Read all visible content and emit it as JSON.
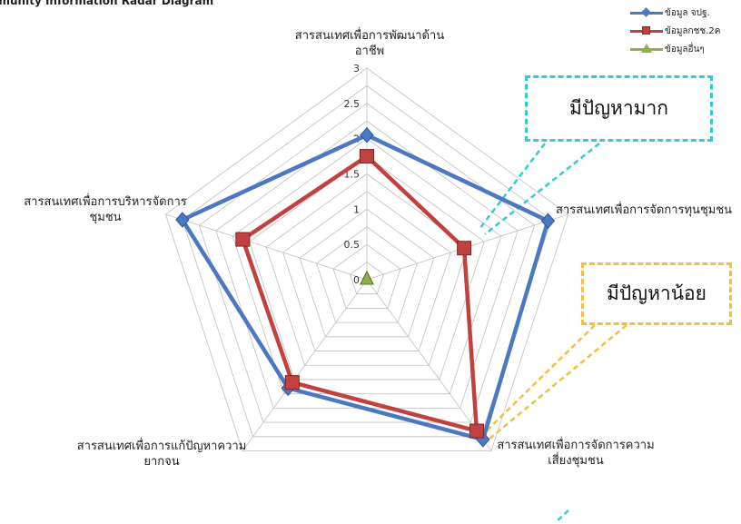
{
  "page_title": "mmunity  Information  Radar  Diagram",
  "callouts": {
    "many_problems": "มีปัญหามาก",
    "few_problems": "มีปัญหาน้อย"
  },
  "colors": {
    "series1": "#4a78c2",
    "series2": "#c0413e",
    "series3": "#8db04a",
    "grid": "#bfbfbf",
    "callout_many": "#33cccc",
    "callout_few": "#f0c040"
  },
  "chart_data": {
    "type": "radar",
    "title": "",
    "categories": [
      "สารสนเทศเพื่อการพัฒนาด้านอาชีพ",
      "สารสนเทศเพื่อการจัดการทุนชุมชน",
      "สารสนเทศเพื่อการจัดการความเสี่ยงชุมชน",
      "สารสนเทศเพื่อการแก้ปัญหาความยากจน",
      "สารสนเทศเพื่อการบริหารจัดการชุมชน"
    ],
    "category_lines": [
      [
        "สารสนเทศเพื่อการพัฒนาด้าน",
        "อาชีพ"
      ],
      [
        "สารสนเทศเพื่อการจัดการทุนชุมชน"
      ],
      [
        "สารสนเทศเพื่อการจัดการความ",
        "เสี่ยงชุมชน"
      ],
      [
        "สารสนเทศเพื่อการแก้ปัญหาความ",
        "ยากจน"
      ],
      [
        "สารสนเทศเพื่อการบริหารจัดการ",
        "ชุมชน"
      ]
    ],
    "rlim": [
      0,
      3
    ],
    "ticks": [
      "0",
      "0.5",
      "1",
      "1.5",
      "2",
      "2.5",
      "3"
    ],
    "tick_values": [
      0,
      0.5,
      1,
      1.5,
      2,
      2.5,
      3
    ],
    "series": [
      {
        "name": "ข้อมูล จปฐ.",
        "values": [
          2.05,
          2.7,
          2.8,
          1.9,
          2.75
        ],
        "color": "#4a78c2",
        "marker": "diamond"
      },
      {
        "name": "ข้อมูลกชช.2ค",
        "values": [
          1.75,
          1.45,
          2.65,
          1.8,
          1.85
        ],
        "color": "#c0413e",
        "marker": "square"
      },
      {
        "name": "ข้อมูลอื่นๆ",
        "values": [
          0,
          0,
          0,
          0,
          0
        ],
        "color": "#8db04a",
        "marker": "triangle"
      }
    ],
    "legend_position": "top-right",
    "grid": true
  }
}
